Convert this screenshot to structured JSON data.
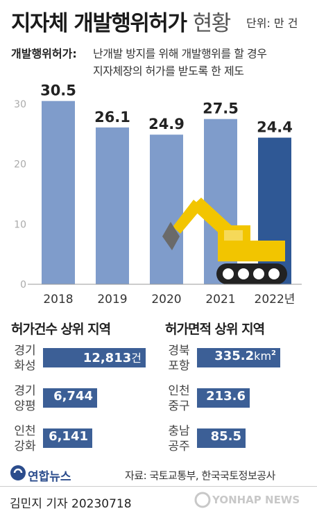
{
  "title": {
    "main": "지자체 개발행위허가",
    "sub": "현황"
  },
  "unit": "단위: 만 건",
  "definition": {
    "term": "개발행위허가:",
    "line1": "난개발 방지를 위해 개발행위를 할 경우",
    "line2": "지자체장의 허가를 받도록 한 제도"
  },
  "chart_data": {
    "type": "bar",
    "categories": [
      "2018",
      "2019",
      "2020",
      "2021",
      "2022년"
    ],
    "values": [
      30.5,
      26.1,
      24.9,
      27.5,
      24.4
    ],
    "value_labels": [
      "30.5",
      "26.1",
      "24.9",
      "27.5",
      "24.4"
    ],
    "ylim": [
      0,
      32
    ],
    "yticks": [
      0,
      10,
      20,
      30
    ],
    "ytick_labels": [
      "0",
      "10",
      "20",
      "30"
    ],
    "grid": false,
    "colors": {
      "default": "#7f9ccb",
      "highlight": "#2f5895",
      "highlight_index": 4
    }
  },
  "count_section": {
    "title": "허가건수 상위 지역",
    "items": [
      {
        "region": "경기 화성",
        "line1": "경기",
        "line2": "화성",
        "value": 12813,
        "value_text": "12,813",
        "unit": "건"
      },
      {
        "region": "경기 양평",
        "line1": "경기",
        "line2": "양평",
        "value": 6744,
        "value_text": "6,744",
        "unit": ""
      },
      {
        "region": "인천 강화",
        "line1": "인천",
        "line2": "강화",
        "value": 6141,
        "value_text": "6,141",
        "unit": ""
      }
    ]
  },
  "area_section": {
    "title": "허가면적 상위 지역",
    "items": [
      {
        "region": "경북 포항",
        "line1": "경북",
        "line2": "포항",
        "value": 335.2,
        "value_text": "335.2",
        "unit": "km",
        "unit_sup": "2"
      },
      {
        "region": "인천 중구",
        "line1": "인천",
        "line2": "중구",
        "value": 213.6,
        "value_text": "213.6",
        "unit": "",
        "unit_sup": ""
      },
      {
        "region": "충남 공주",
        "line1": "충남",
        "line2": "공주",
        "value": 85.5,
        "value_text": "85.5",
        "unit": "",
        "unit_sup": ""
      }
    ]
  },
  "logo": "연합뉴스",
  "source": "자료: 국토교통부, 한국국토정보공사",
  "byline": "김민지 기자  20230718",
  "watermark": "YONHAP NEWS",
  "colors": {
    "bar_dark": "#3c5f96",
    "excavator": "#f2c500",
    "bucket": "#6a6a6a"
  }
}
